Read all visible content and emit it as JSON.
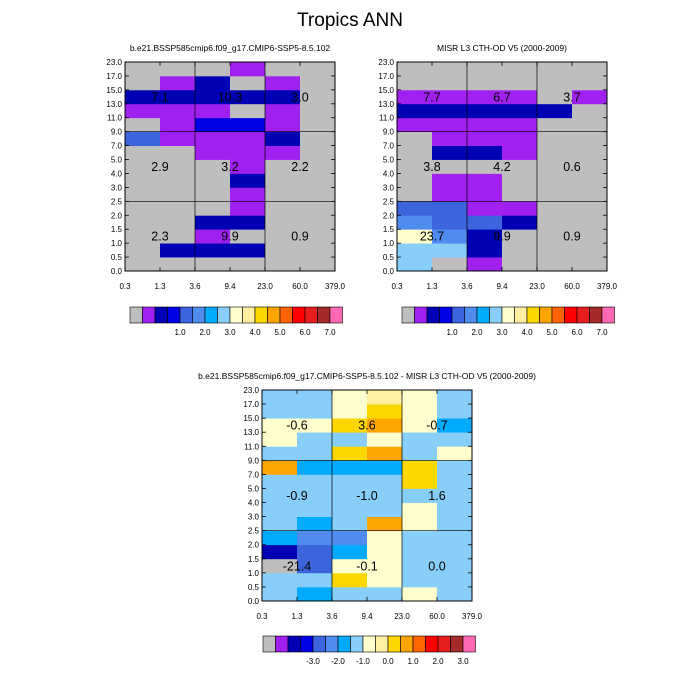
{
  "page": {
    "title": "Tropics ANN"
  },
  "chart_data": [
    {
      "type": "heatmap",
      "title": "b.e21.BSSP585cmip6.f09_g17.CMIP6-SSP5-8.5.102",
      "x_ticks": [
        "0.3",
        "1.3",
        "3.6",
        "9.4",
        "23.0",
        "60.0",
        "379.0"
      ],
      "y_ticks": [
        "0.0",
        "0.5",
        "1.0",
        "1.5",
        "2.0",
        "2.5",
        "3.0",
        "4.0",
        "5.0",
        "7.0",
        "9.0",
        "11.0",
        "13.0",
        "15.0",
        "17.0",
        "23.0"
      ],
      "colorbar_labels": [
        "1.0",
        "2.0",
        "3.0",
        "4.0",
        "5.0",
        "6.0",
        "7.0"
      ],
      "annotations": [
        "7.1",
        "10.3",
        "3.0",
        "2.9",
        "3.2",
        "2.2",
        "2.3",
        "9.9",
        "0.9"
      ],
      "palette": [
        "#bebebe",
        "#a020f0",
        "#0000b4",
        "#0000e6",
        "#3c64dc",
        "#508cf0",
        "#00aaff",
        "#87cefa",
        "#ffffcd",
        "#ffefa0",
        "#ffd700",
        "#ffa500",
        "#ff6400",
        "#ff0000",
        "#e61e1e",
        "#a52a2a",
        "#ff69b4"
      ],
      "grid_levels_rows_bottom_to_top": [
        [
          0,
          0,
          0,
          0,
          0,
          0
        ],
        [
          0,
          2,
          2,
          2,
          0,
          0
        ],
        [
          0,
          0,
          1,
          0,
          0,
          0
        ],
        [
          0,
          0,
          2,
          2,
          0,
          0
        ],
        [
          0,
          0,
          0,
          1,
          0,
          0
        ],
        [
          0,
          0,
          0,
          1,
          0,
          0
        ],
        [
          0,
          0,
          0,
          2,
          0,
          0
        ],
        [
          0,
          0,
          0,
          1,
          0,
          0
        ],
        [
          0,
          0,
          1,
          1,
          1,
          0
        ],
        [
          4,
          1,
          1,
          1,
          2,
          0
        ],
        [
          0,
          1,
          3,
          3,
          1,
          0
        ],
        [
          1,
          1,
          1,
          0,
          1,
          0
        ],
        [
          2,
          2,
          2,
          2,
          2,
          0
        ],
        [
          0,
          1,
          2,
          0,
          1,
          0
        ],
        [
          0,
          0,
          0,
          1,
          0,
          0
        ]
      ]
    },
    {
      "type": "heatmap",
      "title": "MISR L3 CTH-OD V5 (2000-2009)",
      "x_ticks": [
        "0.3",
        "1.3",
        "3.6",
        "9.4",
        "23.0",
        "60.0",
        "379.0"
      ],
      "y_ticks": [
        "0.0",
        "0.5",
        "1.0",
        "1.5",
        "2.0",
        "2.5",
        "3.0",
        "4.0",
        "5.0",
        "7.0",
        "9.0",
        "11.0",
        "13.0",
        "15.0",
        "17.0",
        "23.0"
      ],
      "colorbar_labels": [
        "1.0",
        "2.0",
        "3.0",
        "4.0",
        "5.0",
        "6.0",
        "7.0"
      ],
      "annotations": [
        "7.7",
        "6.7",
        "3.7",
        "3.8",
        "4.2",
        "0.6",
        "23.7",
        "9.9",
        "0.9"
      ],
      "palette": [
        "#bebebe",
        "#a020f0",
        "#0000b4",
        "#0000e6",
        "#3c64dc",
        "#508cf0",
        "#00aaff",
        "#87cefa",
        "#ffffcd",
        "#ffefa0",
        "#ffd700",
        "#ffa500",
        "#ff6400",
        "#ff0000",
        "#e61e1e",
        "#a52a2a",
        "#ff69b4"
      ],
      "grid_levels_rows_bottom_to_top": [
        [
          7,
          0,
          1,
          0,
          0,
          0
        ],
        [
          7,
          7,
          2,
          0,
          0,
          0
        ],
        [
          8,
          5,
          2,
          0,
          0,
          0
        ],
        [
          5,
          4,
          4,
          2,
          0,
          0
        ],
        [
          4,
          4,
          1,
          1,
          0,
          0
        ],
        [
          0,
          1,
          1,
          0,
          0,
          0
        ],
        [
          0,
          1,
          1,
          0,
          0,
          0
        ],
        [
          0,
          0,
          0,
          0,
          0,
          0
        ],
        [
          0,
          2,
          2,
          1,
          0,
          0
        ],
        [
          0,
          1,
          1,
          1,
          0,
          0
        ],
        [
          1,
          1,
          1,
          1,
          0,
          0
        ],
        [
          2,
          2,
          2,
          2,
          2,
          0
        ],
        [
          1,
          1,
          1,
          1,
          0,
          1
        ],
        [
          0,
          0,
          0,
          0,
          0,
          0
        ],
        [
          0,
          0,
          0,
          0,
          0,
          0
        ]
      ]
    },
    {
      "type": "heatmap",
      "title": "b.e21.BSSP585cmip6.f09_g17.CMIP6-SSP5-8.5.102 - MISR L3 CTH-OD V5 (2000-2009)",
      "x_ticks": [
        "0.3",
        "1.3",
        "3.6",
        "9.4",
        "23.0",
        "60.0",
        "379.0"
      ],
      "y_ticks": [
        "0.0",
        "0.5",
        "1.0",
        "1.5",
        "2.0",
        "2.5",
        "3.0",
        "4.0",
        "5.0",
        "7.0",
        "9.0",
        "11.0",
        "13.0",
        "15.0",
        "17.0",
        "23.0"
      ],
      "colorbar_labels": [
        "-3.0",
        "-2.0",
        "-1.0",
        "0.0",
        "1.0",
        "2.0",
        "3.0"
      ],
      "annotations": [
        "-0.6",
        "3.6",
        "-0.7",
        "-0.9",
        "-1.0",
        "1.6",
        "-21.4",
        "-0.1",
        "0.0"
      ],
      "palette": [
        "#bebebe",
        "#a020f0",
        "#0000b4",
        "#0000e6",
        "#3c64dc",
        "#508cf0",
        "#00aaff",
        "#87cefa",
        "#ffffcd",
        "#ffefa0",
        "#ffd700",
        "#ffa500",
        "#ff6400",
        "#ff0000",
        "#e61e1e",
        "#a52a2a",
        "#ff69b4"
      ],
      "grid_levels_rows_bottom_to_top": [
        [
          7,
          6,
          7,
          7,
          8,
          7
        ],
        [
          7,
          7,
          10,
          8,
          7,
          7
        ],
        [
          0,
          4,
          8,
          8,
          7,
          7
        ],
        [
          2,
          4,
          6,
          8,
          7,
          7
        ],
        [
          6,
          5,
          5,
          8,
          7,
          7
        ],
        [
          7,
          6,
          7,
          11,
          8,
          7
        ],
        [
          7,
          7,
          7,
          7,
          8,
          7
        ],
        [
          7,
          7,
          7,
          7,
          7,
          7
        ],
        [
          7,
          7,
          7,
          7,
          10,
          7
        ],
        [
          11,
          6,
          6,
          6,
          10,
          7
        ],
        [
          7,
          7,
          10,
          11,
          7,
          8
        ],
        [
          8,
          7,
          7,
          8,
          7,
          7
        ],
        [
          8,
          8,
          10,
          11,
          8,
          6
        ],
        [
          7,
          7,
          8,
          10,
          8,
          7
        ],
        [
          7,
          7,
          8,
          9,
          8,
          7
        ]
      ]
    }
  ]
}
